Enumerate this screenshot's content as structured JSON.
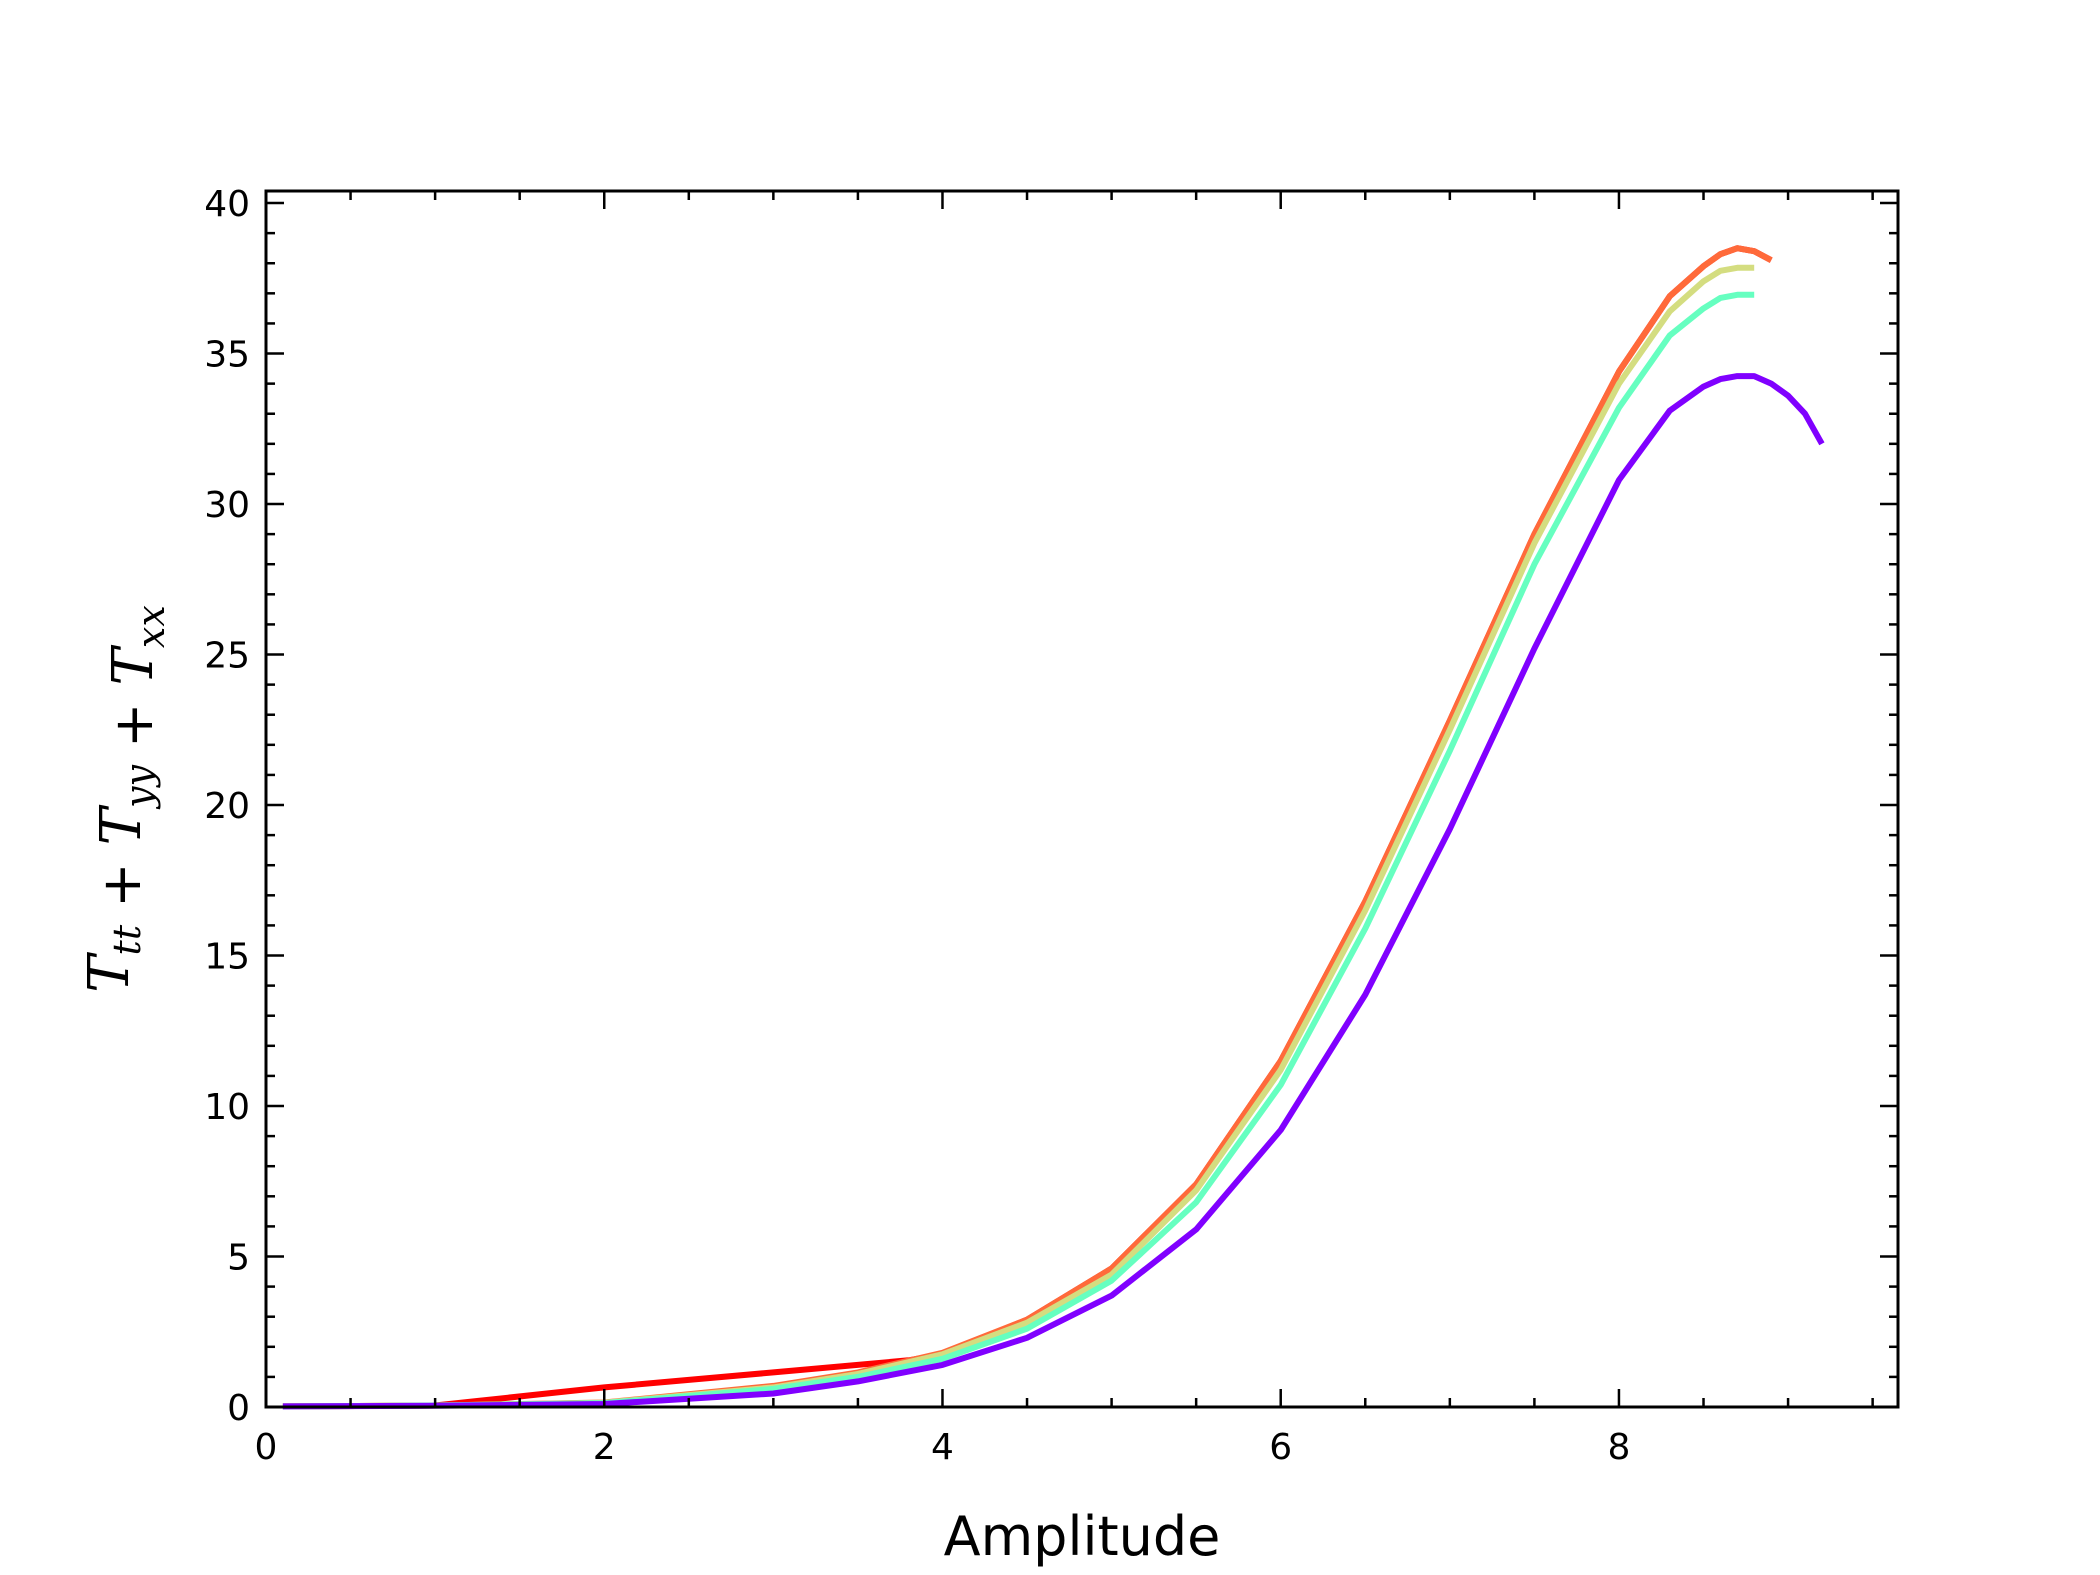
{
  "chart_data": {
    "type": "line",
    "title": "",
    "xlabel": "Amplitude",
    "ylabel": {
      "parts": [
        {
          "t": "T",
          "sub": "tt"
        },
        {
          "t": " + "
        },
        {
          "t": "T",
          "sub": "yy"
        },
        {
          "t": " + "
        },
        {
          "t": "T",
          "sub": "xx"
        }
      ]
    },
    "xlim": [
      0,
      9.65
    ],
    "ylim": [
      0,
      40.4
    ],
    "x_ticks": [
      0,
      2,
      4,
      6,
      8
    ],
    "y_ticks": [
      0,
      5,
      10,
      15,
      20,
      25,
      30,
      35,
      40
    ],
    "x_minor_step": 0.5,
    "y_minor_step": 1,
    "tick_direction": "in",
    "grid": false,
    "legend": "none",
    "series": [
      {
        "color": "#ff0000",
        "x": [
          0.1,
          1.0,
          2.0,
          3.0,
          3.8,
          4.0,
          4.5,
          5.0,
          5.5,
          6.0,
          6.5,
          7.0,
          7.5,
          8.0,
          8.3,
          8.5,
          8.6,
          8.7,
          8.8,
          8.9
        ],
        "y": [
          0.02,
          0.05,
          0.65,
          1.15,
          1.55,
          1.75,
          2.9,
          4.6,
          7.4,
          11.5,
          16.8,
          22.8,
          29.0,
          34.4,
          36.9,
          37.9,
          38.3,
          38.5,
          38.4,
          38.1
        ]
      },
      {
        "color": "#ff6a3a",
        "x": [
          0.1,
          1.0,
          2.0,
          3.0,
          3.5,
          4.0,
          4.5,
          5.0,
          5.5,
          6.0,
          6.5,
          7.0,
          7.5,
          8.0,
          8.3,
          8.5,
          8.6,
          8.7,
          8.8,
          8.9
        ],
        "y": [
          0.02,
          0.05,
          0.15,
          0.7,
          1.15,
          1.8,
          2.9,
          4.6,
          7.4,
          11.5,
          16.8,
          22.8,
          29.0,
          34.4,
          36.9,
          37.9,
          38.3,
          38.5,
          38.4,
          38.1
        ]
      },
      {
        "color": "#d4dd80",
        "x": [
          0.1,
          1.0,
          2.0,
          3.0,
          3.5,
          4.0,
          4.5,
          5.0,
          5.5,
          6.0,
          6.5,
          7.0,
          7.5,
          8.0,
          8.3,
          8.5,
          8.6,
          8.7,
          8.8
        ],
        "y": [
          0.02,
          0.05,
          0.14,
          0.65,
          1.1,
          1.75,
          2.8,
          4.4,
          7.2,
          11.2,
          16.5,
          22.5,
          28.7,
          34.0,
          36.4,
          37.4,
          37.75,
          37.85,
          37.85
        ]
      },
      {
        "color": "#66ffc0",
        "x": [
          0.1,
          1.0,
          2.0,
          3.0,
          3.5,
          4.0,
          4.5,
          5.0,
          5.5,
          6.0,
          6.5,
          7.0,
          7.5,
          8.0,
          8.3,
          8.5,
          8.6,
          8.7,
          8.8
        ],
        "y": [
          0.02,
          0.05,
          0.13,
          0.6,
          1.0,
          1.6,
          2.6,
          4.2,
          6.8,
          10.7,
          15.9,
          21.8,
          28.0,
          33.2,
          35.6,
          36.5,
          36.85,
          36.95,
          36.95
        ]
      },
      {
        "color": "#8000ff",
        "x": [
          0.1,
          1.0,
          2.0,
          3.0,
          3.5,
          4.0,
          4.5,
          5.0,
          5.5,
          6.0,
          6.5,
          7.0,
          7.5,
          8.0,
          8.3,
          8.5,
          8.6,
          8.7,
          8.8,
          8.9,
          9.0,
          9.1,
          9.2
        ],
        "y": [
          0.02,
          0.04,
          0.1,
          0.45,
          0.85,
          1.4,
          2.3,
          3.7,
          5.9,
          9.2,
          13.7,
          19.2,
          25.2,
          30.8,
          33.1,
          33.9,
          34.15,
          34.25,
          34.25,
          34.0,
          33.6,
          33.0,
          32.0
        ]
      }
    ]
  }
}
